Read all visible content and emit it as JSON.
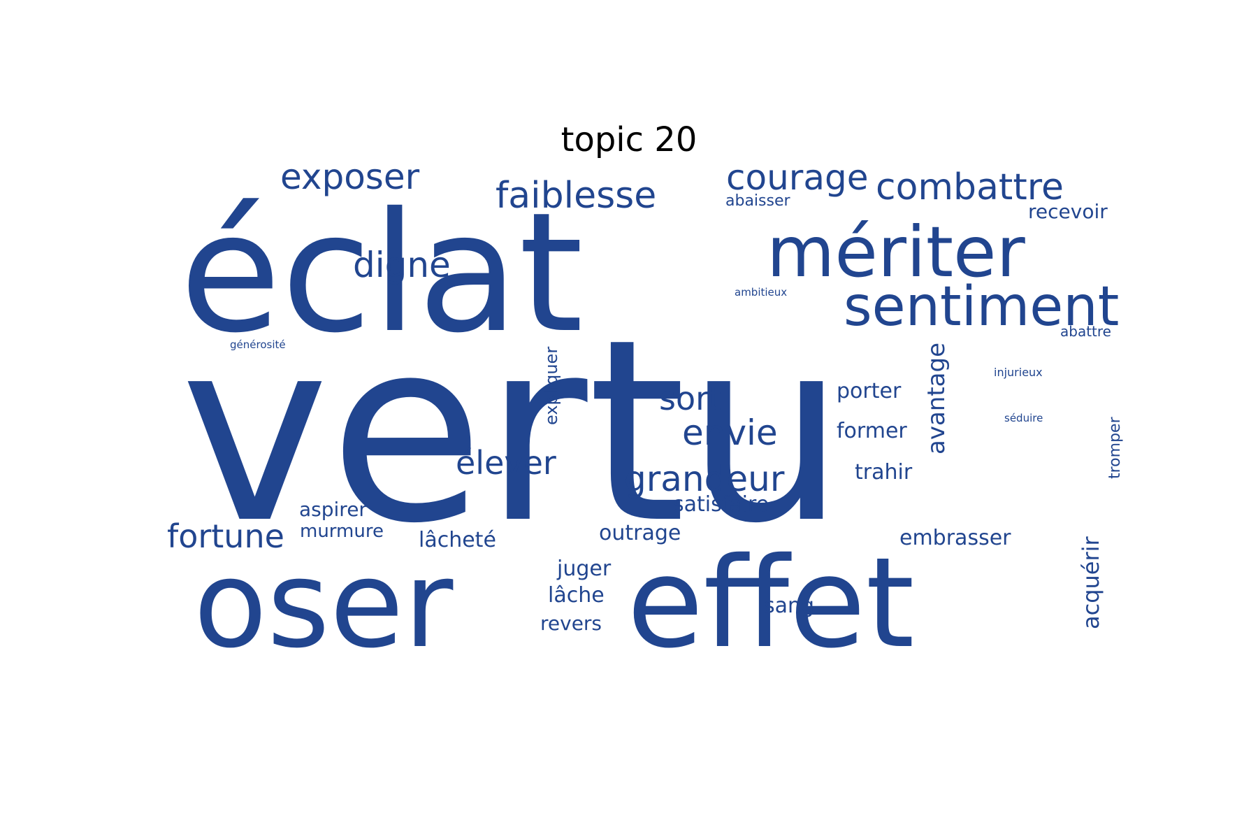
{
  "chart_data": {
    "type": "wordcloud",
    "title": "topic 20",
    "colors": {
      "word": "#21458f",
      "background": "#ffffff",
      "title": "#000000"
    },
    "words": [
      {
        "text": "vertu",
        "weight": 1.0,
        "orientation": "horizontal"
      },
      {
        "text": "éclat",
        "weight": 0.72,
        "orientation": "horizontal"
      },
      {
        "text": "effet",
        "weight": 0.54,
        "orientation": "horizontal"
      },
      {
        "text": "oser",
        "weight": 0.52,
        "orientation": "horizontal"
      },
      {
        "text": "mériter",
        "weight": 0.31,
        "orientation": "horizontal"
      },
      {
        "text": "sentiment",
        "weight": 0.24,
        "orientation": "horizontal"
      },
      {
        "text": "faiblesse",
        "weight": 0.16,
        "orientation": "horizontal"
      },
      {
        "text": "combattre",
        "weight": 0.16,
        "orientation": "horizontal"
      },
      {
        "text": "exposer",
        "weight": 0.15,
        "orientation": "horizontal"
      },
      {
        "text": "courage",
        "weight": 0.15,
        "orientation": "horizontal"
      },
      {
        "text": "digne",
        "weight": 0.15,
        "orientation": "horizontal"
      },
      {
        "text": "envie",
        "weight": 0.15,
        "orientation": "horizontal"
      },
      {
        "text": "grandeur",
        "weight": 0.15,
        "orientation": "horizontal"
      },
      {
        "text": "sort",
        "weight": 0.14,
        "orientation": "horizontal"
      },
      {
        "text": "élever",
        "weight": 0.14,
        "orientation": "horizontal"
      },
      {
        "text": "fortune",
        "weight": 0.14,
        "orientation": "horizontal"
      },
      {
        "text": "avantage",
        "weight": 0.11,
        "orientation": "vertical"
      },
      {
        "text": "acquérir",
        "weight": 0.1,
        "orientation": "vertical"
      },
      {
        "text": "trahir",
        "weight": 0.09,
        "orientation": "horizontal"
      },
      {
        "text": "porter",
        "weight": 0.09,
        "orientation": "horizontal"
      },
      {
        "text": "former",
        "weight": 0.09,
        "orientation": "horizontal"
      },
      {
        "text": "satisfaire",
        "weight": 0.09,
        "orientation": "horizontal"
      },
      {
        "text": "lâcheté",
        "weight": 0.09,
        "orientation": "horizontal"
      },
      {
        "text": "outrage",
        "weight": 0.09,
        "orientation": "horizontal"
      },
      {
        "text": "embrasser",
        "weight": 0.09,
        "orientation": "horizontal"
      },
      {
        "text": "juger",
        "weight": 0.09,
        "orientation": "horizontal"
      },
      {
        "text": "lâche",
        "weight": 0.09,
        "orientation": "horizontal"
      },
      {
        "text": "sang",
        "weight": 0.09,
        "orientation": "horizontal"
      },
      {
        "text": "aspirer",
        "weight": 0.08,
        "orientation": "horizontal"
      },
      {
        "text": "revers",
        "weight": 0.08,
        "orientation": "horizontal"
      },
      {
        "text": "recevoir",
        "weight": 0.08,
        "orientation": "horizontal"
      },
      {
        "text": "murmure",
        "weight": 0.08,
        "orientation": "horizontal"
      },
      {
        "text": "expliquer",
        "weight": 0.07,
        "orientation": "vertical"
      },
      {
        "text": "tromper",
        "weight": 0.07,
        "orientation": "vertical"
      },
      {
        "text": "abaisser",
        "weight": 0.06,
        "orientation": "horizontal"
      },
      {
        "text": "abattre",
        "weight": 0.06,
        "orientation": "horizontal"
      },
      {
        "text": "injurieux",
        "weight": 0.05,
        "orientation": "horizontal"
      },
      {
        "text": "séduire",
        "weight": 0.05,
        "orientation": "horizontal"
      },
      {
        "text": "ambitieux",
        "weight": 0.05,
        "orientation": "horizontal"
      },
      {
        "text": "générosité",
        "weight": 0.05,
        "orientation": "horizontal"
      }
    ]
  }
}
